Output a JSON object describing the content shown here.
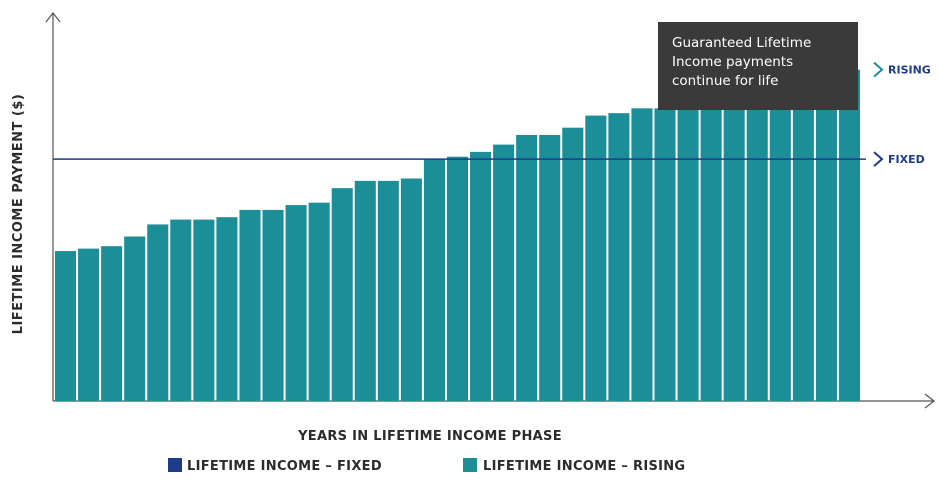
{
  "chart_data": {
    "type": "bar",
    "ylabel": "LIFETIME INCOME PAYMENT ($)",
    "xlabel": "YEARS IN LIFETIME INCOME PHASE",
    "annotation": "Guaranteed Lifetime Income payments continue for life",
    "annotation_lines": [
      "Guaranteed Lifetime",
      "Income payments",
      "continue for life"
    ],
    "legend": [
      {
        "label": "LIFETIME INCOME – FIXED",
        "color": "#1f3c88"
      },
      {
        "label": "LIFETIME INCOME – RISING",
        "color": "#1b8e98"
      }
    ],
    "series_labels": {
      "rising": "RISING",
      "fixed": "FIXED"
    },
    "fixed_value": 100,
    "series": [
      {
        "name": "LIFETIME INCOME – RISING",
        "color": "#1b8e98",
        "values": [
          62,
          63,
          64,
          68,
          73,
          75,
          75,
          76,
          79,
          79,
          81,
          82,
          88,
          91,
          91,
          92,
          100,
          101,
          103,
          106,
          110,
          110,
          113,
          118,
          119,
          121,
          121,
          123,
          124,
          124,
          126,
          131,
          135,
          135,
          137
        ]
      },
      {
        "name": "LIFETIME INCOME – FIXED",
        "color": "#1f3c88",
        "values": [
          100
        ]
      }
    ],
    "ylim": [
      0,
      160
    ],
    "grid": false,
    "legend_position": "bottom-center"
  }
}
